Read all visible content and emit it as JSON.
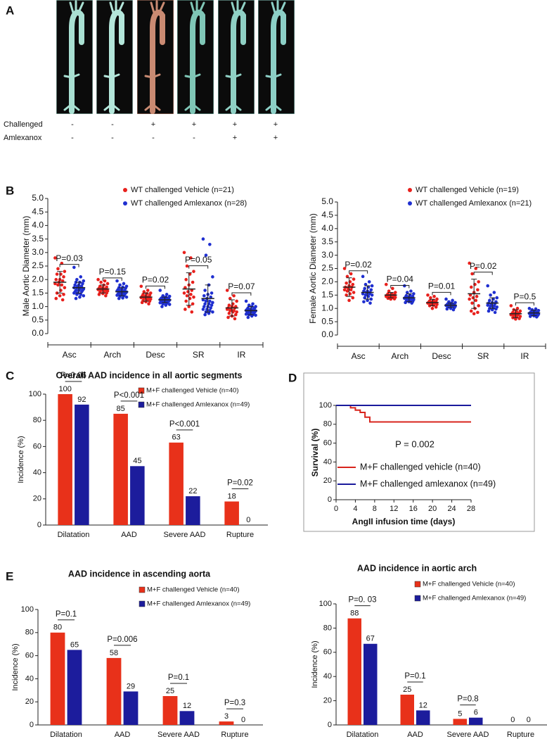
{
  "panel_a": {
    "label": "A",
    "rows": [
      {
        "name": "Challenged",
        "cells": [
          "-",
          "-",
          "+",
          "+",
          "+",
          "+"
        ]
      },
      {
        "name": "Amlexanox",
        "cells": [
          "-",
          "-",
          "-",
          "-",
          "+",
          "+"
        ]
      }
    ]
  },
  "chart_data": [
    {
      "type": "strip",
      "panel": "B",
      "ylabel": "Male Aortic Diameter (mm)",
      "categories": [
        "Asc",
        "Arch",
        "Desc",
        "SR",
        "IR"
      ],
      "ylim": [
        0,
        5
      ],
      "yticks": [
        {
          "value": 0,
          "label": "0.0"
        },
        0.5,
        {
          "value": 1,
          "label": "1.0"
        },
        1.5,
        {
          "value": 2,
          "label": "2.0"
        },
        2.5,
        {
          "value": 3,
          "label": "3.0"
        },
        3.5,
        {
          "value": 4,
          "label": "4.0"
        },
        4.5,
        {
          "value": 5,
          "label": "5.0"
        }
      ],
      "series": [
        {
          "name": "WT challenged Vehicle (n=21)",
          "color": "#e8201c",
          "values": [
            [
              2.8,
              2.6,
              2.4,
              2.3,
              2.2,
              2.2,
              2.1,
              2.0,
              2.0,
              1.95,
              1.9,
              1.85,
              1.8,
              1.8,
              1.7,
              1.6,
              1.5,
              1.45,
              1.4,
              1.3,
              1.25
            ],
            [
              2.0,
              1.95,
              1.9,
              1.85,
              1.8,
              1.75,
              1.72,
              1.7,
              1.68,
              1.66,
              1.65,
              1.63,
              1.6,
              1.6,
              1.58,
              1.55,
              1.53,
              1.5,
              1.48,
              1.45,
              1.4
            ],
            [
              1.75,
              1.6,
              1.55,
              1.5,
              1.48,
              1.45,
              1.42,
              1.4,
              1.38,
              1.36,
              1.35,
              1.33,
              1.3,
              1.3,
              1.28,
              1.25,
              1.22,
              1.2,
              1.18,
              1.15,
              1.1
            ],
            [
              3.0,
              2.8,
              2.5,
              2.3,
              2.2,
              2.0,
              1.9,
              1.8,
              1.7,
              1.6,
              1.55,
              1.5,
              1.45,
              1.4,
              1.35,
              1.3,
              1.2,
              1.1,
              1.0,
              0.9,
              0.8
            ],
            [
              1.6,
              1.4,
              1.3,
              1.2,
              1.1,
              1.05,
              1.0,
              1.0,
              0.95,
              0.95,
              0.9,
              0.9,
              0.85,
              0.85,
              0.8,
              0.8,
              0.75,
              0.7,
              0.65,
              0.6,
              0.55
            ]
          ],
          "mean": [
            1.9,
            1.65,
            1.35,
            1.65,
            0.95
          ],
          "sd": [
            0.4,
            0.15,
            0.15,
            0.6,
            0.3
          ]
        },
        {
          "name": "WT challenged Amlexanox (n=28)",
          "color": "#1f2fd0",
          "values": [
            [
              2.45,
              2.1,
              2.0,
              1.95,
              1.9,
              1.9,
              1.85,
              1.8,
              1.8,
              1.75,
              1.75,
              1.7,
              1.7,
              1.7,
              1.65,
              1.65,
              1.6,
              1.6,
              1.6,
              1.55,
              1.55,
              1.5,
              1.5,
              1.45,
              1.45,
              1.4,
              1.35,
              1.3
            ],
            [
              1.95,
              1.85,
              1.8,
              1.75,
              1.72,
              1.7,
              1.68,
              1.65,
              1.63,
              1.6,
              1.6,
              1.58,
              1.56,
              1.55,
              1.54,
              1.52,
              1.5,
              1.5,
              1.48,
              1.46,
              1.45,
              1.43,
              1.42,
              1.4,
              1.38,
              1.35,
              1.32,
              1.3
            ],
            [
              1.6,
              1.45,
              1.4,
              1.38,
              1.35,
              1.33,
              1.32,
              1.3,
              1.3,
              1.28,
              1.27,
              1.26,
              1.25,
              1.25,
              1.24,
              1.23,
              1.22,
              1.2,
              1.2,
              1.18,
              1.17,
              1.15,
              1.14,
              1.12,
              1.1,
              1.08,
              1.05,
              1.0
            ],
            [
              3.5,
              3.3,
              2.9,
              2.1,
              1.8,
              1.6,
              1.5,
              1.45,
              1.4,
              1.35,
              1.3,
              1.25,
              1.2,
              1.2,
              1.15,
              1.1,
              1.1,
              1.05,
              1.0,
              1.0,
              0.95,
              0.9,
              0.9,
              0.85,
              0.8,
              0.8,
              0.75,
              0.7
            ],
            [
              1.2,
              1.1,
              1.05,
              1.0,
              1.0,
              0.95,
              0.95,
              0.9,
              0.9,
              0.9,
              0.88,
              0.86,
              0.85,
              0.85,
              0.84,
              0.82,
              0.8,
              0.8,
              0.8,
              0.78,
              0.76,
              0.75,
              0.72,
              0.7,
              0.7,
              0.68,
              0.65,
              0.6
            ]
          ],
          "mean": [
            1.7,
            1.55,
            1.25,
            1.3,
            0.85
          ],
          "sd": [
            0.2,
            0.15,
            0.1,
            0.5,
            0.15
          ]
        }
      ],
      "p_labels": [
        "P=0.03",
        "P=0.15",
        "P=0.02",
        "P=0.05",
        "P=0.07"
      ]
    },
    {
      "type": "strip",
      "ylabel": "Female Aortic Diameter (mm)",
      "categories": [
        "Asc",
        "Arch",
        "Desc",
        "SR",
        "IR"
      ],
      "ylim": [
        0,
        5
      ],
      "yticks": [
        {
          "value": 0,
          "label": "0.0"
        },
        0.5,
        {
          "value": 1,
          "label": "1.0"
        },
        1.5,
        {
          "value": 2,
          "label": "2.0"
        },
        2.5,
        {
          "value": 3,
          "label": "3.0"
        },
        3.5,
        {
          "value": 4,
          "label": "4.0"
        },
        4.5,
        {
          "value": 5,
          "label": "5.0"
        }
      ],
      "series": [
        {
          "name": "WT challenged Vehicle (n=19)",
          "color": "#e8201c",
          "values": [
            [
              2.5,
              2.3,
              2.2,
              2.1,
              2.0,
              1.95,
              1.9,
              1.85,
              1.8,
              1.8,
              1.75,
              1.7,
              1.7,
              1.65,
              1.6,
              1.55,
              1.5,
              1.4,
              1.3
            ],
            [
              1.9,
              1.75,
              1.65,
              1.6,
              1.55,
              1.55,
              1.52,
              1.5,
              1.5,
              1.48,
              1.47,
              1.45,
              1.45,
              1.43,
              1.42,
              1.4,
              1.38,
              1.36,
              1.35
            ],
            [
              1.5,
              1.45,
              1.4,
              1.35,
              1.3,
              1.28,
              1.26,
              1.25,
              1.23,
              1.22,
              1.2,
              1.2,
              1.18,
              1.16,
              1.15,
              1.12,
              1.1,
              1.05,
              1.0
            ],
            [
              2.7,
              2.5,
              2.3,
              2.0,
              1.9,
              1.8,
              1.7,
              1.6,
              1.5,
              1.45,
              1.4,
              1.35,
              1.3,
              1.2,
              1.1,
              1.0,
              0.9,
              0.85,
              0.8
            ],
            [
              1.1,
              1.0,
              0.95,
              0.9,
              0.88,
              0.85,
              0.83,
              0.82,
              0.8,
              0.8,
              0.78,
              0.76,
              0.75,
              0.72,
              0.7,
              0.68,
              0.65,
              0.62,
              0.6
            ]
          ],
          "mean": [
            1.8,
            1.5,
            1.22,
            1.55,
            0.8
          ],
          "sd": [
            0.35,
            0.1,
            0.12,
            0.55,
            0.15
          ]
        },
        {
          "name": "WT challenged Amlexanox (n=21)",
          "color": "#1f2fd0",
          "values": [
            [
              2.2,
              2.0,
              1.9,
              1.85,
              1.8,
              1.75,
              1.7,
              1.65,
              1.65,
              1.6,
              1.6,
              1.55,
              1.55,
              1.5,
              1.5,
              1.45,
              1.4,
              1.35,
              1.3,
              1.25,
              1.2
            ],
            [
              1.85,
              1.65,
              1.6,
              1.55,
              1.5,
              1.48,
              1.45,
              1.43,
              1.42,
              1.4,
              1.4,
              1.38,
              1.36,
              1.35,
              1.33,
              1.3,
              1.28,
              1.26,
              1.25,
              1.22,
              1.2
            ],
            [
              1.35,
              1.3,
              1.25,
              1.22,
              1.2,
              1.18,
              1.16,
              1.15,
              1.14,
              1.13,
              1.12,
              1.11,
              1.1,
              1.1,
              1.08,
              1.07,
              1.05,
              1.03,
              1.0,
              0.98,
              0.95
            ],
            [
              1.85,
              1.6,
              1.5,
              1.4,
              1.35,
              1.3,
              1.25,
              1.22,
              1.2,
              1.18,
              1.15,
              1.12,
              1.1,
              1.08,
              1.05,
              1.02,
              1.0,
              0.98,
              0.95,
              0.9,
              0.85
            ],
            [
              1.0,
              0.98,
              0.95,
              0.92,
              0.9,
              0.88,
              0.86,
              0.85,
              0.84,
              0.83,
              0.82,
              0.81,
              0.8,
              0.8,
              0.78,
              0.76,
              0.75,
              0.73,
              0.72,
              0.7,
              0.68
            ]
          ],
          "mean": [
            1.6,
            1.4,
            1.12,
            1.2,
            0.83
          ],
          "sd": [
            0.25,
            0.15,
            0.08,
            0.2,
            0.1
          ]
        }
      ],
      "p_labels": [
        "P=0.02",
        "P=0.04",
        "P=0.01",
        "P=0.02",
        "P=0.5"
      ]
    },
    {
      "type": "bar",
      "panel": "C",
      "title": "Overall AAD incidence in all aortic segments",
      "ylabel": "Incidence (%)",
      "categories": [
        "Dilatation",
        "AAD",
        "Severe AAD",
        "Rupture"
      ],
      "ylim": [
        0,
        100
      ],
      "yticks": [
        0,
        20,
        40,
        60,
        80,
        100
      ],
      "series": [
        {
          "name": "M+F challenged Vehicle (n=40)",
          "color": "#e8311a",
          "values": [
            100,
            85,
            63,
            18
          ]
        },
        {
          "name": "M+F challenged Amlexanox (n=49)",
          "color": "#1c1c9c",
          "values": [
            92,
            45,
            22,
            0
          ]
        }
      ],
      "p_labels": [
        "P=0.06",
        "P<0.001",
        "P<0.001",
        "P=0.02"
      ]
    },
    {
      "type": "line",
      "panel": "D",
      "ylabel": "Survival (%)",
      "xlabel": "AngII infusion time (days)",
      "annotation": "P = 0.002",
      "xlim": [
        0,
        28
      ],
      "xticks": [
        0,
        4,
        8,
        12,
        16,
        20,
        24,
        28
      ],
      "ylim": [
        0,
        100
      ],
      "yticks": [
        0,
        20,
        40,
        60,
        80,
        100
      ],
      "series": [
        {
          "name": "M+F challenged vehicle (n=40)",
          "color": "#d8241c",
          "x": [
            0,
            3,
            3,
            4,
            4,
            5,
            5,
            6,
            6,
            7,
            7,
            28
          ],
          "values": [
            100,
            100,
            97.5,
            97.5,
            95,
            95,
            92.5,
            92.5,
            87.5,
            87.5,
            82.5,
            82.5
          ]
        },
        {
          "name": "M+F challenged amlexanox (n=49)",
          "color": "#1a1a9c",
          "x": [
            0,
            28
          ],
          "values": [
            100,
            100
          ]
        }
      ]
    },
    {
      "type": "bar",
      "panel": "E",
      "title": "AAD incidence in ascending aorta",
      "ylabel": "Incidence (%)",
      "categories": [
        "Dilatation",
        "AAD",
        "Severe AAD",
        "Rupture"
      ],
      "ylim": [
        0,
        100
      ],
      "yticks": [
        0,
        20,
        40,
        60,
        80,
        100
      ],
      "series": [
        {
          "name": "M+F challenged Vehicle (n=40)",
          "color": "#e8311a",
          "values": [
            80,
            58,
            25,
            3
          ]
        },
        {
          "name": "M+F challenged Amlexanox (n=49)",
          "color": "#1c1c9c",
          "values": [
            65,
            29,
            12,
            0
          ]
        }
      ],
      "p_labels": [
        "P=0.1",
        "P=0.006",
        "P=0.1",
        "P=0.3"
      ]
    },
    {
      "type": "bar",
      "title": "AAD incidence in aortic arch",
      "ylabel": "Incidence (%)",
      "categories": [
        "Dilatation",
        "AAD",
        "Severe AAD",
        "Rupture"
      ],
      "ylim": [
        0,
        100
      ],
      "yticks": [
        0,
        20,
        40,
        60,
        80,
        100
      ],
      "series": [
        {
          "name": "M+F challenged Vehicle (n=40)",
          "color": "#e8311a",
          "values": [
            88,
            25,
            5,
            0
          ]
        },
        {
          "name": "M+F challenged Amlexanox (n=49)",
          "color": "#1c1c9c",
          "values": [
            67,
            12,
            6,
            0
          ]
        }
      ],
      "p_labels": [
        "P=0. 03",
        "P=0.1",
        "P=0.8",
        null
      ]
    }
  ]
}
